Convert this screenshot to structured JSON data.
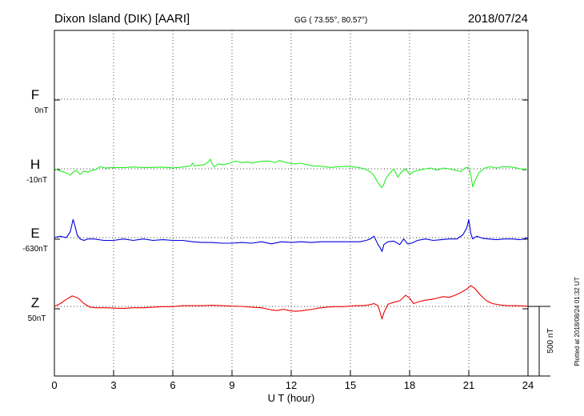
{
  "header": {
    "station": "Dixon Island (DIK)  [AARI]",
    "coords": "GG ( 73.55°,  80.57°)",
    "date": "2018/07/24"
  },
  "footer": {
    "plotted": "Plotted at 2018/08/24 01:32 UT",
    "scale_label": "500 nT"
  },
  "chart_data": {
    "type": "line",
    "xlabel": "U T (hour)",
    "ylabel": "",
    "xlim": [
      0,
      24
    ],
    "x_ticks": [
      0,
      3,
      6,
      9,
      12,
      15,
      18,
      21,
      24
    ],
    "grid": true,
    "legend": "left",
    "scale_nT": 500,
    "series": [
      {
        "name": "F",
        "offset_label": "0nT",
        "color": "#ffaa00",
        "baseline_offset": 0,
        "x": [],
        "values": []
      },
      {
        "name": "H",
        "offset_label": "-10nT",
        "color": "#22ee22",
        "baseline_offset": -10,
        "x": [
          0,
          0.3,
          0.6,
          0.8,
          0.95,
          1.1,
          1.3,
          1.5,
          1.7,
          1.9,
          2.1,
          2.3,
          2.6,
          3,
          3.5,
          4,
          4.5,
          5,
          5.5,
          6,
          6.3,
          6.6,
          6.9,
          7.0,
          7.1,
          7.3,
          7.6,
          7.8,
          7.9,
          8.0,
          8.1,
          8.3,
          8.6,
          8.9,
          9.0,
          9.2,
          9.5,
          9.8,
          10.0,
          10.3,
          10.6,
          10.9,
          11.2,
          11.4,
          11.6,
          11.9,
          12.2,
          12.5,
          12.8,
          13.1,
          13.4,
          13.7,
          14.0,
          14.4,
          14.8,
          15.1,
          15.4,
          15.7,
          16.0,
          16.2,
          16.4,
          16.5,
          16.6,
          16.7,
          16.8,
          17.0,
          17.2,
          17.4,
          17.6,
          17.8,
          18.0,
          18.2,
          18.5,
          18.8,
          19.1,
          19.4,
          19.7,
          20.0,
          20.3,
          20.6,
          20.8,
          21.0,
          21.1,
          21.2,
          21.3,
          21.5,
          21.8,
          22.1,
          22.4,
          22.7,
          23.0,
          23.3,
          23.6,
          24
        ],
        "values": [
          -10,
          -25,
          -40,
          -55,
          -35,
          -20,
          -50,
          -25,
          -35,
          -20,
          -15,
          5,
          -5,
          0,
          -2,
          3,
          -2,
          0,
          2,
          -3,
          0,
          5,
          10,
          30,
          10,
          15,
          20,
          40,
          60,
          25,
          5,
          25,
          20,
          30,
          40,
          45,
          35,
          40,
          30,
          40,
          45,
          45,
          35,
          50,
          40,
          30,
          25,
          30,
          20,
          10,
          10,
          5,
          0,
          5,
          8,
          5,
          0,
          -10,
          -30,
          -60,
          -110,
          -130,
          -145,
          -120,
          -80,
          -40,
          -10,
          -70,
          -30,
          -10,
          -50,
          -30,
          -20,
          -10,
          -5,
          -20,
          -5,
          -10,
          -20,
          -30,
          -5,
          0,
          -55,
          -140,
          -100,
          -40,
          -5,
          5,
          -5,
          5,
          5,
          0,
          -10,
          -15
        ]
      },
      {
        "name": "E",
        "offset_label": "-630nT",
        "color": "#0000dd",
        "baseline_offset": -630,
        "x": [
          0,
          0.3,
          0.6,
          0.8,
          0.95,
          1.05,
          1.15,
          1.3,
          1.5,
          1.7,
          2.0,
          2.5,
          3,
          3.5,
          4,
          4.5,
          5,
          5.5,
          6,
          6.5,
          7,
          7.5,
          8,
          8.5,
          9,
          9.5,
          10,
          10.5,
          11,
          11.5,
          12,
          12.5,
          13,
          13.5,
          14,
          14.5,
          15,
          15.5,
          15.8,
          16.0,
          16.2,
          16.4,
          16.5,
          16.6,
          16.7,
          16.9,
          17.2,
          17.5,
          17.7,
          17.9,
          18.1,
          18.4,
          18.8,
          19.2,
          19.6,
          20.0,
          20.4,
          20.7,
          20.9,
          21.0,
          21.1,
          21.2,
          21.4,
          21.7,
          22.0,
          22.4,
          22.8,
          23.2,
          23.6,
          24
        ],
        "values": [
          -630,
          -620,
          -630,
          -590,
          -500,
          -550,
          -610,
          -640,
          -650,
          -640,
          -640,
          -650,
          -650,
          -640,
          -650,
          -640,
          -650,
          -645,
          -650,
          -650,
          -660,
          -665,
          -665,
          -670,
          -670,
          -665,
          -670,
          -660,
          -675,
          -660,
          -665,
          -660,
          -665,
          -660,
          -660,
          -660,
          -660,
          -660,
          -650,
          -640,
          -620,
          -680,
          -700,
          -730,
          -680,
          -660,
          -655,
          -680,
          -640,
          -675,
          -670,
          -650,
          -640,
          -650,
          -645,
          -640,
          -640,
          -610,
          -560,
          -500,
          -600,
          -640,
          -620,
          -635,
          -640,
          -645,
          -640,
          -640,
          -645,
          -630
        ]
      },
      {
        "name": "Z",
        "offset_label": "50nT",
        "color": "#ee0000",
        "baseline_offset": 50,
        "x": [
          0,
          0.3,
          0.6,
          0.9,
          1.2,
          1.5,
          1.8,
          2.1,
          2.5,
          3,
          3.5,
          4,
          4.5,
          5,
          5.5,
          6,
          6.5,
          7,
          7.5,
          8,
          8.5,
          9,
          9.5,
          10,
          10.5,
          11,
          11.3,
          11.6,
          11.9,
          12.2,
          12.5,
          12.8,
          13.1,
          13.4,
          13.8,
          14.2,
          14.6,
          15,
          15.3,
          15.6,
          15.9,
          16.2,
          16.4,
          16.5,
          16.6,
          16.7,
          16.9,
          17.2,
          17.5,
          17.8,
          18.0,
          18.2,
          18.5,
          18.8,
          19.1,
          19.4,
          19.7,
          20.0,
          20.3,
          20.6,
          20.9,
          21.1,
          21.3,
          21.6,
          21.9,
          22.2,
          22.6,
          23.0,
          23.4,
          24
        ],
        "values": [
          50,
          70,
          100,
          125,
          110,
          70,
          45,
          40,
          40,
          38,
          35,
          40,
          40,
          45,
          48,
          48,
          55,
          55,
          55,
          58,
          55,
          52,
          50,
          45,
          40,
          25,
          20,
          30,
          20,
          15,
          18,
          25,
          30,
          38,
          45,
          48,
          48,
          52,
          55,
          55,
          60,
          70,
          55,
          10,
          -40,
          5,
          65,
          80,
          90,
          130,
          110,
          70,
          85,
          95,
          100,
          110,
          120,
          115,
          130,
          150,
          175,
          200,
          180,
          130,
          90,
          70,
          60,
          55,
          55,
          52
        ]
      }
    ]
  }
}
